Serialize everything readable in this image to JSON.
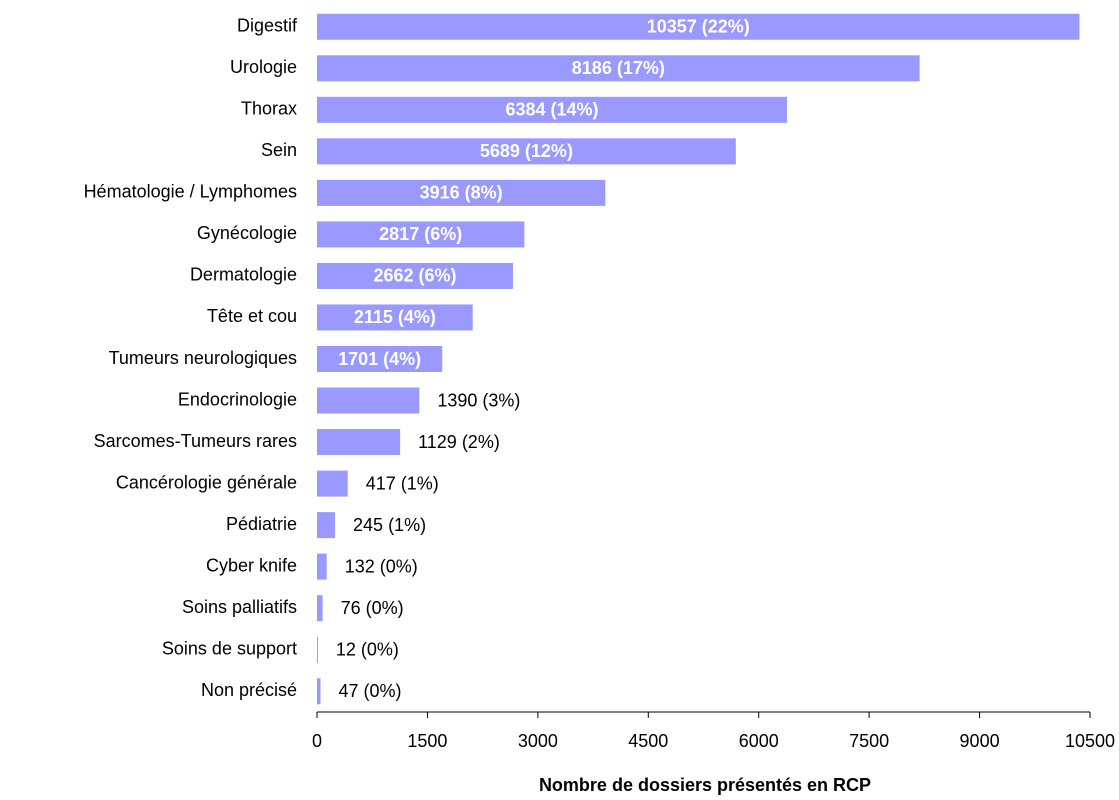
{
  "chart_data": {
    "type": "bar",
    "orientation": "horizontal",
    "x_label": "Nombre de dossiers présentés en RCP",
    "categories": [
      "Digestif",
      "Urologie",
      "Thorax",
      "Sein",
      "Hématologie / Lymphomes",
      "Gynécologie",
      "Dermatologie",
      "Tête et cou",
      "Tumeurs neurologiques",
      "Endocrinologie",
      "Sarcomes-Tumeurs rares",
      "Cancérologie générale",
      "Pédiatrie",
      "Cyber knife",
      "Soins palliatifs",
      "Soins de support",
      "Non précisé"
    ],
    "values": [
      10357,
      8186,
      6384,
      5689,
      3916,
      2817,
      2662,
      2115,
      1701,
      1390,
      1129,
      417,
      245,
      132,
      76,
      12,
      47
    ],
    "value_labels": [
      "10357 (22%)",
      "8186 (17%)",
      "6384 (14%)",
      "5689 (12%)",
      "3916 (8%)",
      "2817 (6%)",
      "2662 (6%)",
      "2115 (4%)",
      "1701 (4%)",
      "1390 (3%)",
      "1129 (2%)",
      "417 (1%)",
      "245 (1%)",
      "132 (0%)",
      "76 (0%)",
      "12 (0%)",
      "47 (0%)"
    ],
    "color": "#9999ff",
    "xlim": [
      0,
      10500
    ],
    "xticks": [
      0,
      1500,
      3000,
      4500,
      6000,
      7500,
      9000,
      10500
    ],
    "grid": false
  }
}
